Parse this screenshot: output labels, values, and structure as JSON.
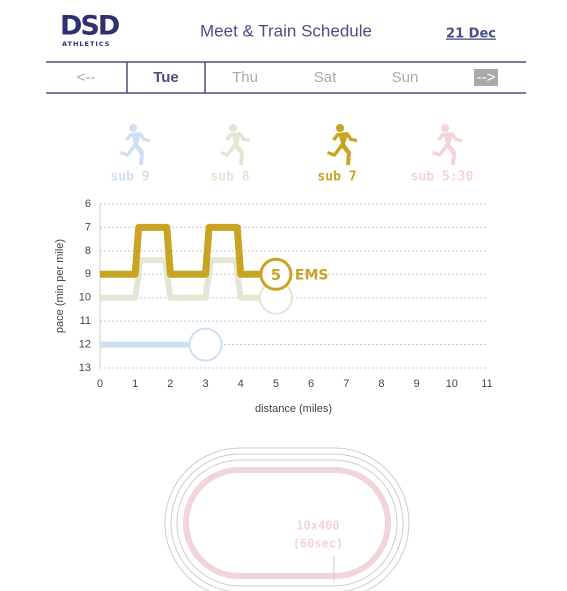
{
  "header": {
    "logo": "DSD",
    "logo_sub": "ATHLETICS",
    "title": "Meet & Train Schedule",
    "date": "21 Dec"
  },
  "nav": {
    "items": [
      "<--",
      "Tue",
      "Thu",
      "Sat",
      "Sun",
      "-->"
    ],
    "active": 1
  },
  "chart_data": {
    "type": "line",
    "x_label": "distance (miles)",
    "y_label": "pace (min per mile)",
    "xlim": [
      0,
      11
    ],
    "ylim": [
      13,
      6
    ],
    "xticks": [
      0,
      1,
      2,
      3,
      4,
      5,
      6,
      7,
      8,
      9,
      10,
      11
    ],
    "yticks": [
      6,
      7,
      8,
      9,
      10,
      11,
      12,
      13
    ],
    "grid": true,
    "series": [
      {
        "name": "sub 9",
        "color": "#cfe0f3",
        "x": [
          0,
          3
        ],
        "values": [
          12,
          12
        ]
      },
      {
        "name": "sub 8",
        "color": "#e3e6d2",
        "x": [
          0,
          1,
          1.15,
          1.85,
          2,
          3,
          3.15,
          3.85,
          4,
          5
        ],
        "values": [
          10,
          10,
          8.4,
          8.4,
          10,
          10,
          8.4,
          8.4,
          10,
          10
        ]
      },
      {
        "name": "sub 7",
        "color": "#c9a424",
        "x": [
          0,
          1,
          1.1,
          1.9,
          2,
          3,
          3.1,
          3.9,
          4,
          5
        ],
        "values": [
          9,
          9,
          7,
          7,
          9,
          9,
          7,
          7,
          9,
          9
        ]
      },
      {
        "name": "sub 5:30",
        "color": "#f5d3d7",
        "x": [],
        "values": []
      }
    ],
    "annotations": {
      "marker": "5",
      "label": "EMS"
    }
  },
  "track": {
    "line1": "10x400",
    "line2": "(60sec)"
  }
}
